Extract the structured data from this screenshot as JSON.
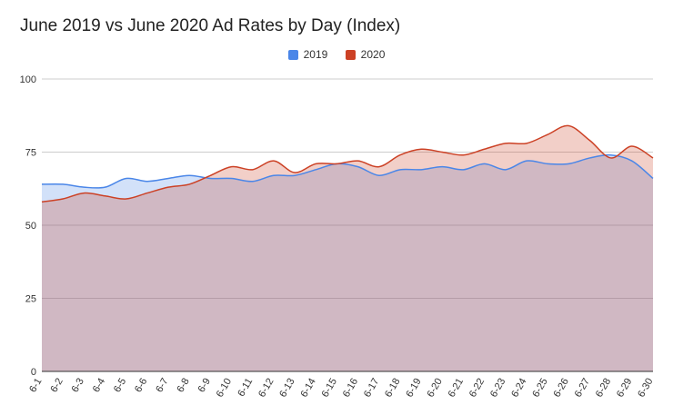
{
  "chart_data": {
    "type": "area",
    "title": "June 2019 vs June 2020 Ad Rates by Day (Index)",
    "xlabel": "",
    "ylabel": "",
    "ylim": [
      0,
      100
    ],
    "yticks": [
      "0",
      "25",
      "50",
      "75",
      "100"
    ],
    "grid": true,
    "legend_position": "top-center",
    "categories": [
      "6-1",
      "6-2",
      "6-3",
      "6-4",
      "6-5",
      "6-6",
      "6-7",
      "6-8",
      "6-9",
      "6-10",
      "6-11",
      "6-12",
      "6-13",
      "6-14",
      "6-15",
      "6-16",
      "6-17",
      "6-18",
      "6-19",
      "6-20",
      "6-21",
      "6-22",
      "6-23",
      "6-24",
      "6-25",
      "6-26",
      "6-27",
      "6-28",
      "6-29",
      "6-30"
    ],
    "series": [
      {
        "name": "2019",
        "color": "#4a86e8",
        "fill": "rgba(74,134,232,0.25)",
        "values": [
          64,
          64,
          63,
          63,
          66,
          65,
          66,
          67,
          66,
          66,
          65,
          67,
          67,
          69,
          71,
          70,
          67,
          69,
          69,
          70,
          69,
          71,
          69,
          72,
          71,
          71,
          73,
          74,
          72,
          66
        ]
      },
      {
        "name": "2020",
        "color": "#cc4125",
        "fill": "rgba(204,65,37,0.25)",
        "values": [
          58,
          59,
          61,
          60,
          59,
          61,
          63,
          64,
          67,
          70,
          69,
          72,
          68,
          71,
          71,
          72,
          70,
          74,
          76,
          75,
          74,
          76,
          78,
          78,
          81,
          84,
          79,
          73,
          77,
          73
        ]
      }
    ]
  }
}
